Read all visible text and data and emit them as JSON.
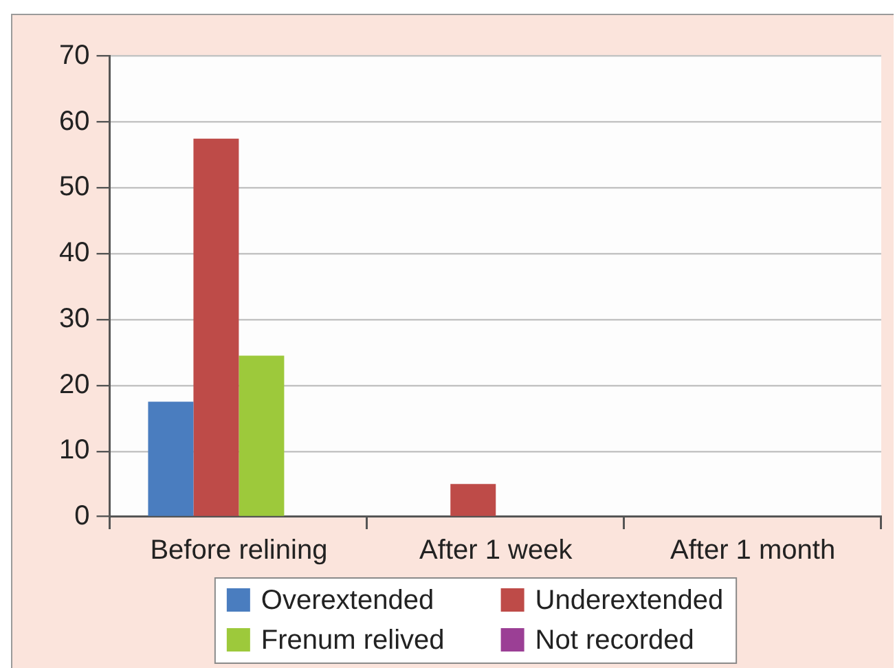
{
  "chart_data": {
    "type": "bar",
    "categories": [
      "Before relining",
      "After 1 week",
      "After 1 month"
    ],
    "series": [
      {
        "name": "Overextended",
        "color": "#4a7dbf",
        "values": [
          17.5,
          0,
          0
        ]
      },
      {
        "name": "Underextended",
        "color": "#be4b48",
        "values": [
          57.5,
          5,
          0
        ]
      },
      {
        "name": "Frenum relived",
        "color": "#9dc93b",
        "values": [
          24.5,
          0,
          0
        ]
      },
      {
        "name": "Not recorded",
        "color": "#9b3f95",
        "values": [
          0,
          0,
          0
        ]
      }
    ],
    "ylim": [
      0,
      70
    ],
    "yticks": [
      0,
      10,
      20,
      30,
      40,
      50,
      60,
      70
    ],
    "grid": "y",
    "legend": "bottom"
  }
}
